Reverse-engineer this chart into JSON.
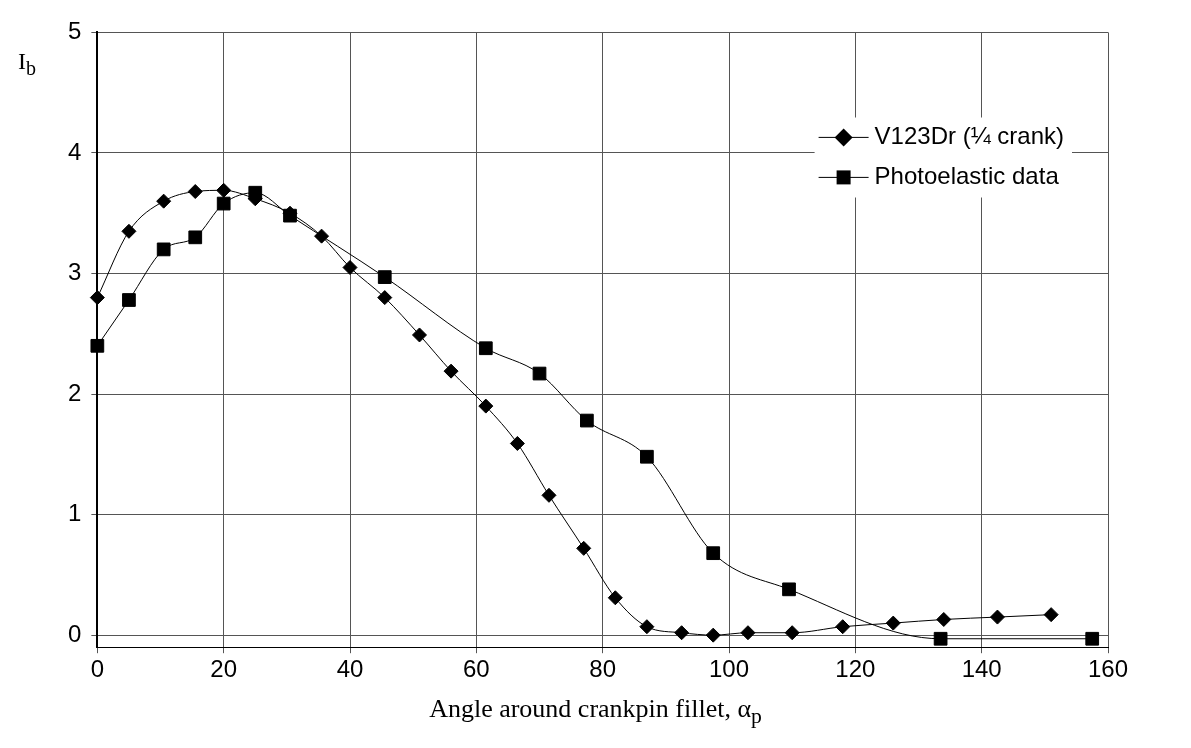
{
  "chart_data": {
    "type": "line",
    "xlabel": "Angle around crankpin fillet, α$_{p}$",
    "ylabel": "I$_{b}$",
    "xlim": [
      0,
      160
    ],
    "xticks": [
      0,
      20,
      40,
      60,
      80,
      100,
      120,
      140,
      160
    ],
    "ylim": [
      -0.1,
      5
    ],
    "yticks": [
      0,
      1,
      2,
      3,
      4,
      5
    ],
    "grid": true,
    "legend": "top right",
    "series": [
      {
        "name": "V123Dr (¼ crank)",
        "color": "#000000",
        "marker": "diamond",
        "x": [
          0,
          5,
          10.5,
          15.5,
          20,
          25,
          30.5,
          35.5,
          40,
          45.5,
          51,
          56,
          61.5,
          66.5,
          71.5,
          77,
          82,
          87,
          92.5,
          97.5,
          103,
          110,
          118,
          126,
          134,
          142.5,
          151
        ],
        "values": [
          2.8,
          3.35,
          3.6,
          3.68,
          3.69,
          3.62,
          3.5,
          3.31,
          3.05,
          2.8,
          2.49,
          2.19,
          1.9,
          1.59,
          1.16,
          0.72,
          0.31,
          0.07,
          0.02,
          0,
          0.02,
          0.02,
          0.07,
          0.1,
          0.13,
          0.15,
          0.17
        ]
      },
      {
        "name": "Photoelastic data",
        "color": "#000000",
        "marker": "square",
        "x": [
          0,
          5,
          10.5,
          15.5,
          20,
          25,
          30.5,
          45.5,
          61.5,
          70,
          77.5,
          87,
          97.5,
          109.5,
          133.5,
          157.5
        ],
        "values": [
          2.4,
          2.78,
          3.2,
          3.3,
          3.58,
          3.67,
          3.48,
          2.97,
          2.38,
          2.17,
          1.78,
          1.48,
          0.68,
          0.38,
          -0.03,
          -0.03
        ]
      }
    ]
  }
}
